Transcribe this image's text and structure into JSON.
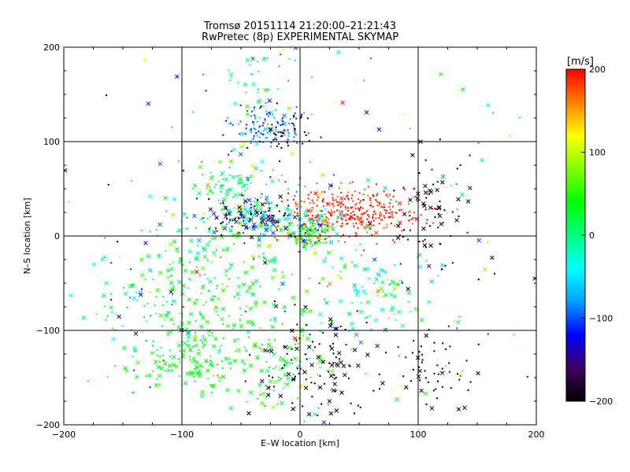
{
  "chart_data": {
    "type": "scatter",
    "title": "Tromsø 20151114 21:20:00–21:21:43",
    "subtitle": "RwPretec (8p) EXPERIMENTAL SKYMAP",
    "xlabel": "E–W location [km]",
    "ylabel": "N–S location [km]",
    "xlim": [
      -200,
      200
    ],
    "ylim": [
      -200,
      200
    ],
    "x_ticks": [
      -200,
      -100,
      0,
      100,
      200
    ],
    "y_ticks": [
      -200,
      -100,
      0,
      100,
      200
    ],
    "x_tick_labels": [
      "−200",
      "−100",
      "0",
      "100",
      "200"
    ],
    "y_tick_labels": [
      "−200",
      "−100",
      "0",
      "100",
      "200"
    ],
    "grid": true,
    "grid_lines": {
      "x": [
        -100,
        0,
        100
      ],
      "y": [
        -100,
        0,
        100
      ]
    },
    "markers": [
      "dot",
      "cross"
    ],
    "colorbar": {
      "label": "[m/s]",
      "range": [
        -200,
        200
      ],
      "ticks": [
        200,
        100,
        0,
        -100,
        -200
      ],
      "tick_labels": [
        "200",
        "100",
        "0",
        "−100",
        "−200"
      ],
      "colors": [
        "#000000",
        "#400060",
        "#0000ff",
        "#00a0ff",
        "#00ffff",
        "#00ff80",
        "#00ff00",
        "#80ff00",
        "#ffff00",
        "#ff8000",
        "#ff0000"
      ]
    },
    "clusters": [
      {
        "x": 45,
        "y": 25,
        "sx": 30,
        "sy": 14,
        "n": 320,
        "v": 190,
        "vs": 15,
        "cross": 0.05
      },
      {
        "x": 8,
        "y": 5,
        "sx": 12,
        "sy": 10,
        "n": 180,
        "v": 40,
        "vs": 90,
        "cross": 0.25
      },
      {
        "x": -40,
        "y": 20,
        "sx": 20,
        "sy": 10,
        "n": 200,
        "v": -120,
        "vs": 110,
        "cross": 0.4
      },
      {
        "x": -30,
        "y": 115,
        "sx": 16,
        "sy": 10,
        "n": 110,
        "v": -90,
        "vs": 30,
        "cross": 0.08
      },
      {
        "x": -10,
        "y": 112,
        "sx": 14,
        "sy": 12,
        "n": 40,
        "v": -200,
        "vs": 10,
        "cross": 0.05
      },
      {
        "x": -60,
        "y": 55,
        "sx": 12,
        "sy": 10,
        "n": 60,
        "v": 10,
        "vs": 25,
        "cross": 0.3
      },
      {
        "x": -70,
        "y": -50,
        "sx": 40,
        "sy": 40,
        "n": 260,
        "v": 30,
        "vs": 30,
        "cross": 0.55
      },
      {
        "x": -90,
        "y": -130,
        "sx": 25,
        "sy": 20,
        "n": 140,
        "v": 35,
        "vs": 15,
        "cross": 0.45
      },
      {
        "x": -10,
        "y": -140,
        "sx": 18,
        "sy": 25,
        "n": 90,
        "v": 30,
        "vs": 30,
        "cross": 0.35
      },
      {
        "x": 10,
        "y": -130,
        "sx": 25,
        "sy": 25,
        "n": 110,
        "v": -200,
        "vs": 10,
        "cross": 0.45
      },
      {
        "x": 110,
        "y": -140,
        "sx": 20,
        "sy": 20,
        "n": 60,
        "v": -200,
        "vs": 10,
        "cross": 0.3
      },
      {
        "x": 70,
        "y": -60,
        "sx": 20,
        "sy": 20,
        "n": 70,
        "v": -10,
        "vs": 45,
        "cross": 0.5
      },
      {
        "x": -140,
        "y": -70,
        "sx": 20,
        "sy": 30,
        "n": 50,
        "v": -20,
        "vs": 60,
        "cross": 0.5
      },
      {
        "x": -35,
        "y": 165,
        "sx": 25,
        "sy": 25,
        "n": 40,
        "v": -20,
        "vs": 60,
        "cross": 0.3
      },
      {
        "x": 110,
        "y": 20,
        "sx": 20,
        "sy": 35,
        "n": 70,
        "v": -200,
        "vs": 20,
        "cross": 0.4
      },
      {
        "x": 0,
        "y": 0,
        "sx": 110,
        "sy": 110,
        "n": 250,
        "v": 0,
        "vs": 110,
        "cross": 0.4
      }
    ]
  }
}
